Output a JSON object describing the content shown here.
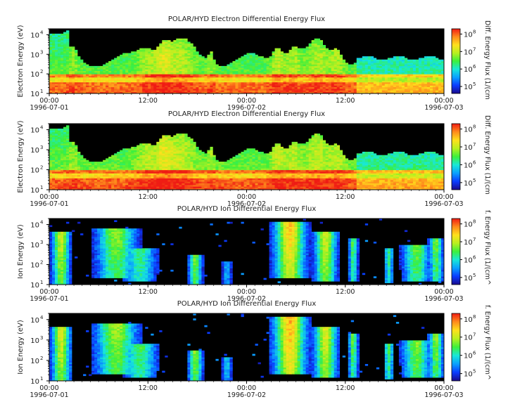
{
  "figure": {
    "background": "#ffffff"
  },
  "chart_data": [
    {
      "type": "heatmap",
      "title": "POLAR/HYD  Electron Differential Energy Flux",
      "ylabel": "Electron Energy (eV)",
      "yscale": "log",
      "ylim": [
        10,
        20000
      ],
      "yticks": [
        {
          "exp": "1"
        },
        {
          "exp": "2"
        },
        {
          "exp": "3"
        },
        {
          "exp": "4"
        }
      ],
      "xlim": [
        "1996-07-01 00:00",
        "1996-07-03 00:00"
      ],
      "xticks": [
        {
          "time": "00:00",
          "date": "1996-07-01"
        },
        {
          "time": "12:00",
          "date": ""
        },
        {
          "time": "00:00",
          "date": "1996-07-02"
        },
        {
          "time": "12:00",
          "date": ""
        },
        {
          "time": "00:00",
          "date": "1996-07-03"
        }
      ],
      "colorbar": {
        "label": "Diff. Energy Flux (1/(cm",
        "ticks": [
          {
            "exp": "5"
          },
          {
            "exp": "6"
          },
          {
            "exp": "7"
          },
          {
            "exp": "8"
          }
        ],
        "scale": "log"
      },
      "species": "electron",
      "variant": 1
    },
    {
      "type": "heatmap",
      "title": "POLAR/HYD  Electron Differential Energy Flux",
      "ylabel": "Electron Energy (eV)",
      "yscale": "log",
      "ylim": [
        10,
        20000
      ],
      "yticks": [
        {
          "exp": "1"
        },
        {
          "exp": "2"
        },
        {
          "exp": "3"
        },
        {
          "exp": "4"
        }
      ],
      "xlim": [
        "1996-07-01 00:00",
        "1996-07-03 00:00"
      ],
      "xticks": [
        {
          "time": "00:00",
          "date": "1996-07-01"
        },
        {
          "time": "12:00",
          "date": ""
        },
        {
          "time": "00:00",
          "date": "1996-07-02"
        },
        {
          "time": "12:00",
          "date": ""
        },
        {
          "time": "00:00",
          "date": "1996-07-03"
        }
      ],
      "colorbar": {
        "label": "Diff. Energy Flux (1/(cm",
        "ticks": [
          {
            "exp": "5"
          },
          {
            "exp": "6"
          },
          {
            "exp": "7"
          },
          {
            "exp": "8"
          }
        ],
        "scale": "log"
      },
      "species": "electron",
      "variant": 2
    },
    {
      "type": "heatmap",
      "title": "POLAR/HYD  Ion Differential Energy Flux",
      "ylabel": "Ion Energy (eV)",
      "yscale": "log",
      "ylim": [
        10,
        20000
      ],
      "yticks": [
        {
          "exp": "1"
        },
        {
          "exp": "2"
        },
        {
          "exp": "3"
        },
        {
          "exp": "4"
        }
      ],
      "xlim": [
        "1996-07-01 00:00",
        "1996-07-03 00:00"
      ],
      "xticks": [
        {
          "time": "00:00",
          "date": "1996-07-01"
        },
        {
          "time": "12:00",
          "date": ""
        },
        {
          "time": "00:00",
          "date": "1996-07-02"
        },
        {
          "time": "12:00",
          "date": ""
        },
        {
          "time": "00:00",
          "date": "1996-07-03"
        }
      ],
      "colorbar": {
        "label": "f. Energy Flux (1/(cm^",
        "ticks": [
          {
            "exp": "5"
          },
          {
            "exp": "6"
          },
          {
            "exp": "7"
          },
          {
            "exp": "8"
          }
        ],
        "scale": "log"
      },
      "species": "ion",
      "variant": 1
    },
    {
      "type": "heatmap",
      "title": "POLAR/HYD  Ion Differential Energy Flux",
      "ylabel": "Ion Energy (eV)",
      "yscale": "log",
      "ylim": [
        10,
        20000
      ],
      "yticks": [
        {
          "exp": "1"
        },
        {
          "exp": "2"
        },
        {
          "exp": "3"
        },
        {
          "exp": "4"
        }
      ],
      "xlim": [
        "1996-07-01 00:00",
        "1996-07-03 00:00"
      ],
      "xticks": [
        {
          "time": "00:00",
          "date": "1996-07-01"
        },
        {
          "time": "12:00",
          "date": ""
        },
        {
          "time": "00:00",
          "date": "1996-07-02"
        },
        {
          "time": "12:00",
          "date": ""
        },
        {
          "time": "00:00",
          "date": "1996-07-03"
        }
      ],
      "colorbar": {
        "label": "f. Energy Flux (1/(cm^",
        "ticks": [
          {
            "exp": "5"
          },
          {
            "exp": "6"
          },
          {
            "exp": "7"
          },
          {
            "exp": "8"
          }
        ],
        "scale": "log"
      },
      "species": "ion",
      "variant": 2
    }
  ],
  "colormap": [
    "#1a0a8c",
    "#0a3cff",
    "#0aa0ff",
    "#18e8d8",
    "#3cf03c",
    "#b8f020",
    "#ffe01c",
    "#ff8c1c",
    "#f01c14"
  ],
  "empty_color": "#000000"
}
